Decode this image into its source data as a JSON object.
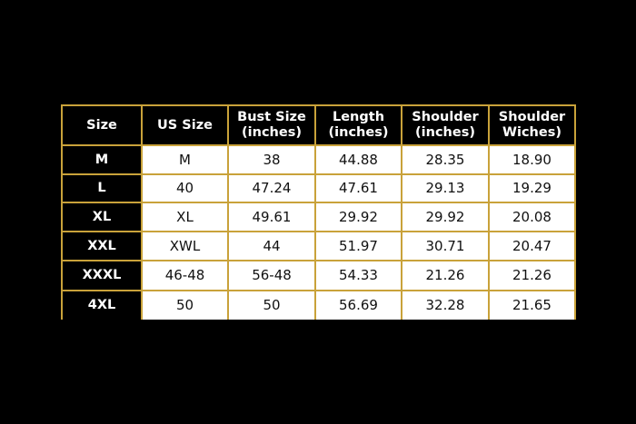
{
  "table": {
    "header": [
      [
        "Size"
      ],
      [
        "US Size"
      ],
      [
        "Bust Size",
        "(inches)"
      ],
      [
        "Length",
        "(inches)"
      ],
      [
        "Shoulder",
        "(inches)"
      ],
      [
        "Shoulder",
        "Wiches)"
      ]
    ],
    "rows": [
      [
        "M",
        "M",
        "38",
        "44.88",
        "28.35",
        "18.90"
      ],
      [
        "L",
        "40",
        "47.24",
        "47.61",
        "29.13",
        "19.29"
      ],
      [
        "XL",
        "XL",
        "49.61",
        "29.92",
        "29.92",
        "20.08"
      ],
      [
        "XXL",
        "XWL",
        "44",
        "51.97",
        "30.71",
        "20.47"
      ],
      [
        "XXXL",
        "46-48",
        "56-48",
        "54.33",
        "21.26",
        "21.26"
      ],
      [
        "4XL",
        "50",
        "50",
        "56.69",
        "32.28",
        "21.65"
      ]
    ]
  }
}
